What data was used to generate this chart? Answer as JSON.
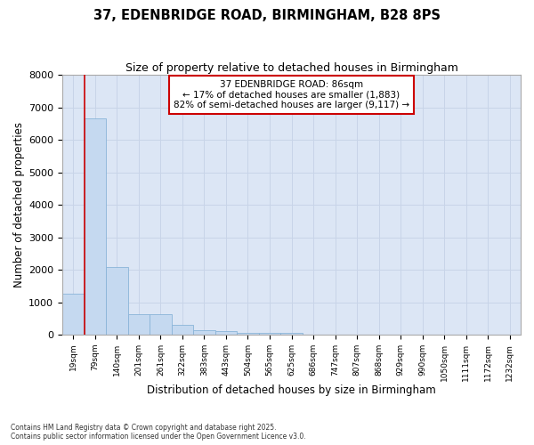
{
  "title": "37, EDENBRIDGE ROAD, BIRMINGHAM, B28 8PS",
  "subtitle": "Size of property relative to detached houses in Birmingham",
  "xlabel": "Distribution of detached houses by size in Birmingham",
  "ylabel": "Number of detached properties",
  "bar_color": "#c5d9f0",
  "bar_edge_color": "#8ab4d8",
  "grid_color": "#c8d4e8",
  "background_color": "#dce6f5",
  "annotation_box_color": "#cc0000",
  "vline_color": "#cc0000",
  "categories": [
    "19sqm",
    "79sqm",
    "140sqm",
    "201sqm",
    "261sqm",
    "322sqm",
    "383sqm",
    "443sqm",
    "504sqm",
    "565sqm",
    "625sqm",
    "686sqm",
    "747sqm",
    "807sqm",
    "868sqm",
    "929sqm",
    "990sqm",
    "1050sqm",
    "1111sqm",
    "1172sqm",
    "1232sqm"
  ],
  "values": [
    1270,
    6650,
    2090,
    640,
    620,
    300,
    150,
    100,
    45,
    45,
    45,
    0,
    0,
    0,
    0,
    0,
    0,
    0,
    0,
    0,
    0
  ],
  "ylim": [
    0,
    8000
  ],
  "yticks": [
    0,
    1000,
    2000,
    3000,
    4000,
    5000,
    6000,
    7000,
    8000
  ],
  "annotation_line1": "37 EDENBRIDGE ROAD: 86sqm",
  "annotation_line2": "← 17% of detached houses are smaller (1,883)",
  "annotation_line3": "82% of semi-detached houses are larger (9,117) →",
  "vline_bin_index": 1,
  "footer1": "Contains HM Land Registry data © Crown copyright and database right 2025.",
  "footer2": "Contains public sector information licensed under the Open Government Licence v3.0."
}
